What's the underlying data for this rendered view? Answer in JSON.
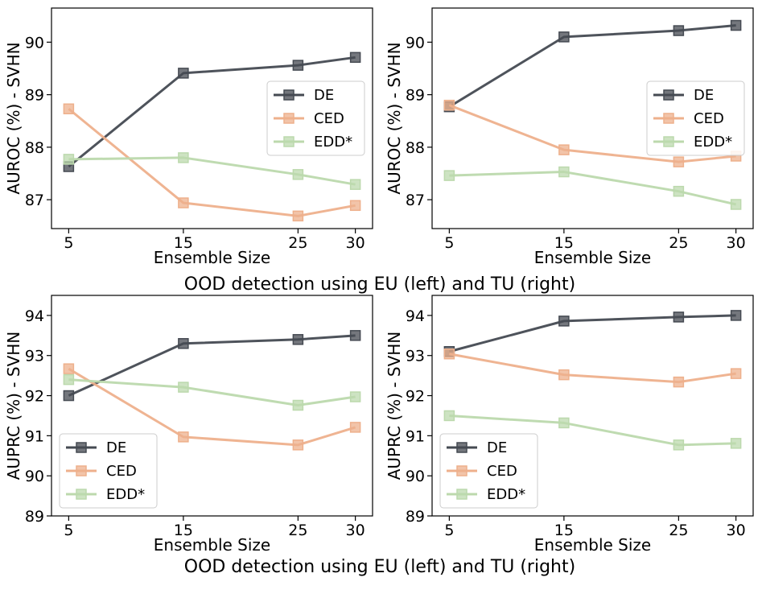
{
  "captions": [
    "OOD detection using EU (left) and TU (right)",
    "OOD detection using EU (left) and TU (right)"
  ],
  "series_style": [
    {
      "name": "DE",
      "color": "#454a52"
    },
    {
      "name": "CED",
      "color": "#eeb08c"
    },
    {
      "name": "EDD*",
      "color": "#bcd9ad"
    }
  ],
  "chart_data": [
    {
      "type": "line",
      "title": "",
      "xlabel": "Ensemble Size",
      "ylabel": "AUROC (%) - SVHN",
      "x": [
        5,
        15,
        25,
        30
      ],
      "xticks": [
        "5",
        "15",
        "25",
        "30"
      ],
      "yticks": [
        87,
        88,
        89,
        90
      ],
      "ylim": [
        86.45,
        90.65
      ],
      "legend": "center-right",
      "series": [
        {
          "name": "DE",
          "values": [
            87.63,
            89.41,
            89.56,
            89.71
          ]
        },
        {
          "name": "CED",
          "values": [
            88.73,
            86.94,
            86.69,
            86.89
          ]
        },
        {
          "name": "EDD*",
          "values": [
            87.77,
            87.8,
            87.48,
            87.29
          ]
        }
      ]
    },
    {
      "type": "line",
      "title": "",
      "xlabel": "Ensemble Size",
      "ylabel": "AUROC (%) - SVHN",
      "x": [
        5,
        15,
        25,
        30
      ],
      "xticks": [
        "5",
        "15",
        "25",
        "30"
      ],
      "yticks": [
        87,
        88,
        89,
        90
      ],
      "ylim": [
        86.45,
        90.65
      ],
      "legend": "center-right",
      "series": [
        {
          "name": "DE",
          "values": [
            88.77,
            90.1,
            90.22,
            90.32
          ]
        },
        {
          "name": "CED",
          "values": [
            88.8,
            87.95,
            87.72,
            87.83
          ]
        },
        {
          "name": "EDD*",
          "values": [
            87.46,
            87.53,
            87.16,
            86.91
          ]
        }
      ]
    },
    {
      "type": "line",
      "title": "",
      "xlabel": "Ensemble Size",
      "ylabel": "AUPRC (%) - SVHN",
      "x": [
        5,
        15,
        25,
        30
      ],
      "xticks": [
        "5",
        "15",
        "25",
        "30"
      ],
      "yticks": [
        89,
        90,
        91,
        92,
        93,
        94
      ],
      "ylim": [
        89.0,
        94.5
      ],
      "legend": "lower-left",
      "series": [
        {
          "name": "DE",
          "values": [
            92.0,
            93.3,
            93.4,
            93.5
          ]
        },
        {
          "name": "CED",
          "values": [
            92.67,
            90.97,
            90.77,
            91.21
          ]
        },
        {
          "name": "EDD*",
          "values": [
            92.4,
            92.21,
            91.76,
            91.97
          ]
        }
      ]
    },
    {
      "type": "line",
      "title": "",
      "xlabel": "Ensemble Size",
      "ylabel": "AUPRC (%) - SVHN",
      "x": [
        5,
        15,
        25,
        30
      ],
      "xticks": [
        "5",
        "15",
        "25",
        "30"
      ],
      "yticks": [
        89,
        90,
        91,
        92,
        93,
        94
      ],
      "ylim": [
        89.0,
        94.5
      ],
      "legend": "lower-left",
      "series": [
        {
          "name": "DE",
          "values": [
            93.1,
            93.86,
            93.96,
            94.0
          ]
        },
        {
          "name": "CED",
          "values": [
            93.04,
            92.52,
            92.34,
            92.55
          ]
        },
        {
          "name": "EDD*",
          "values": [
            91.5,
            91.32,
            90.77,
            90.81
          ]
        }
      ]
    }
  ]
}
